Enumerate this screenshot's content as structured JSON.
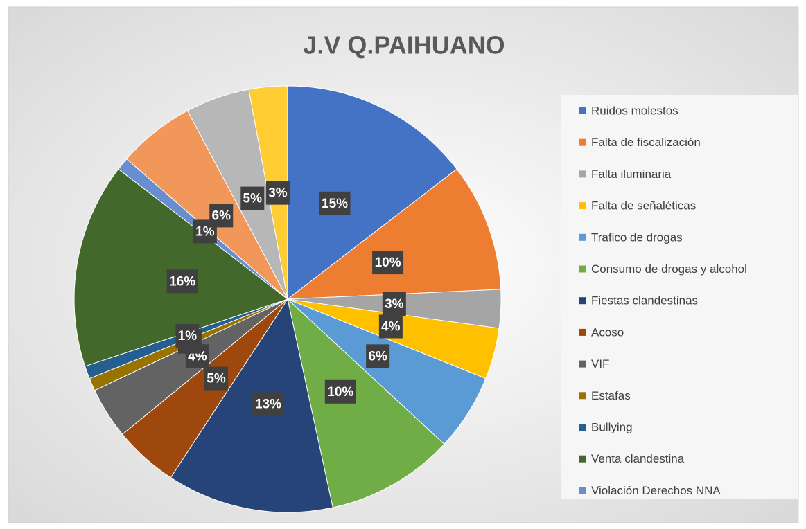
{
  "chart_data": {
    "type": "pie",
    "title": "J.V Q.PAIHUANO",
    "categories": [
      "Ruidos molestos",
      "Falta de fiscalización",
      "Falta iluminaria",
      "Falta de señaléticas",
      "Trafico de drogas",
      "Consumo de drogas y alcohol",
      "Fiestas clandestinas",
      "Acoso",
      "VIF",
      "Estafas",
      "Bullying",
      "Venta clandestina",
      "Violación Derechos NNA",
      null,
      null,
      null
    ],
    "values": [
      15,
      10,
      3,
      4,
      6,
      10,
      13,
      5,
      4,
      1,
      1,
      16,
      1,
      6,
      5,
      3
    ],
    "value_labels": [
      "15%",
      "10%",
      "3%",
      "4%",
      "6%",
      "10%",
      "13%",
      "5%",
      "4%",
      "1%",
      "1%",
      "16%",
      "1%",
      "6%",
      "5%",
      "3%"
    ],
    "colors": [
      "#4472c4",
      "#ed7d31",
      "#a5a5a5",
      "#ffc000",
      "#5b9bd5",
      "#70ad47",
      "#264478",
      "#9e480e",
      "#636363",
      "#997300",
      "#255e91",
      "#43682b",
      "#698ed0",
      "#f1975a",
      "#b7b7b7",
      "#ffcd33"
    ],
    "legend": "right"
  }
}
